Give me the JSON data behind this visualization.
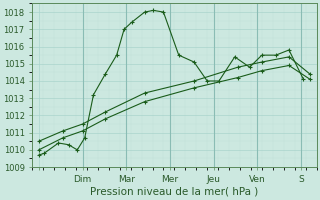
{
  "xlabel": "Pression niveau de la mer( hPa )",
  "ylim": [
    1009,
    1018.5
  ],
  "background_color": "#cce8e0",
  "grid_color": "#aad4cc",
  "line_color": "#1a5c1a",
  "tick_labels": [
    "",
    "Dim",
    "Mar",
    "Mer",
    "Jeu",
    "Ven",
    "S"
  ],
  "tick_positions": [
    0,
    1,
    2,
    3,
    4,
    5,
    6
  ],
  "yticks": [
    1009,
    1010,
    1011,
    1012,
    1013,
    1014,
    1015,
    1016,
    1017,
    1018
  ],
  "series1_x": [
    0.0,
    0.12,
    0.45,
    0.68,
    0.88,
    1.05,
    1.25,
    1.52,
    1.78,
    1.95,
    2.12,
    2.42,
    2.62,
    2.85,
    3.2,
    3.55,
    3.85,
    4.12,
    4.48,
    4.82,
    5.1,
    5.42,
    5.72,
    6.05
  ],
  "series1_y": [
    1009.7,
    1009.8,
    1010.4,
    1010.3,
    1010.0,
    1010.7,
    1013.2,
    1014.4,
    1015.5,
    1017.0,
    1017.4,
    1018.0,
    1018.1,
    1018.0,
    1015.5,
    1015.1,
    1014.0,
    1014.0,
    1015.4,
    1014.8,
    1015.5,
    1015.5,
    1015.8,
    1014.1
  ],
  "series2_x": [
    0.0,
    0.55,
    1.0,
    1.52,
    2.42,
    3.55,
    4.55,
    5.1,
    5.72,
    6.2
  ],
  "series2_y": [
    1010.0,
    1010.7,
    1011.1,
    1011.8,
    1012.8,
    1013.6,
    1014.2,
    1014.6,
    1014.9,
    1014.1
  ],
  "series3_x": [
    0.0,
    0.55,
    1.0,
    1.52,
    2.42,
    3.55,
    4.55,
    5.1,
    5.72,
    6.2
  ],
  "series3_y": [
    1010.5,
    1011.1,
    1011.5,
    1012.2,
    1013.3,
    1014.0,
    1014.8,
    1015.1,
    1015.4,
    1014.4
  ]
}
